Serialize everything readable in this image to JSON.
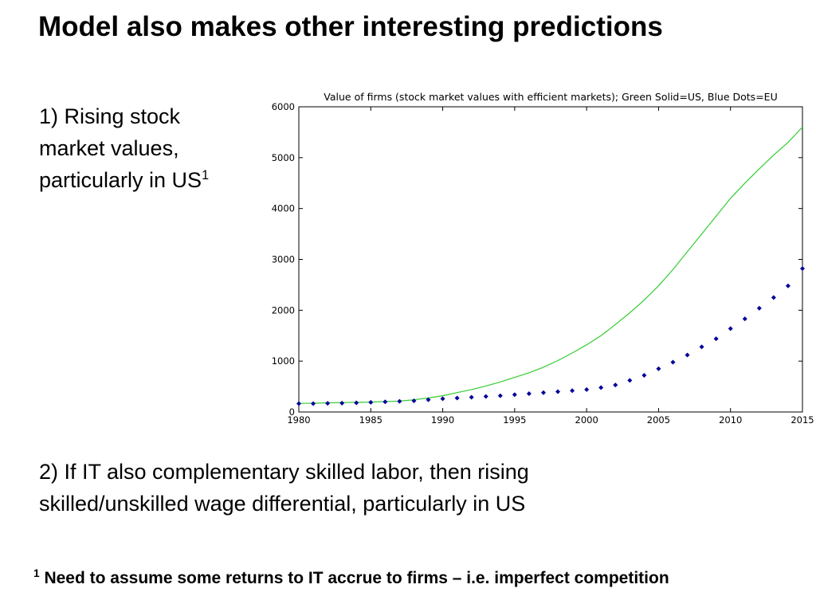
{
  "slide": {
    "title": "Model also makes other interesting predictions",
    "point1": {
      "lines": [
        "1) Rising stock",
        "market values,",
        "particularly in US"
      ],
      "sup": "1"
    },
    "point2": {
      "lines": [
        "2) If IT also complementary skilled labor, then rising",
        "skilled/unskilled wage differential, particularly in US"
      ]
    },
    "footnote": {
      "sup": "1",
      "text": "Need to assume some returns to IT accrue to firms – i.e. imperfect competition"
    }
  },
  "chart_data": {
    "type": "line",
    "title": "Value of firms (stock market values with efficient markets); Green Solid=US, Blue Dots=EU",
    "xlim": [
      1980,
      2015
    ],
    "ylim": [
      0,
      6000
    ],
    "x_ticks": [
      1980,
      1985,
      1990,
      1995,
      2000,
      2005,
      2010,
      2015
    ],
    "y_ticks": [
      0,
      1000,
      2000,
      3000,
      4000,
      5000,
      6000
    ],
    "grid": false,
    "series": [
      {
        "name": "US",
        "style": "solid",
        "color": "#33cc33",
        "x": [
          1980,
          1981,
          1982,
          1983,
          1984,
          1985,
          1986,
          1987,
          1988,
          1989,
          1990,
          1991,
          1992,
          1993,
          1994,
          1995,
          1996,
          1997,
          1998,
          1999,
          2000,
          2001,
          2002,
          2003,
          2004,
          2005,
          2006,
          2007,
          2008,
          2009,
          2010,
          2011,
          2012,
          2013,
          2014,
          2015
        ],
        "values": [
          170,
          172,
          180,
          185,
          190,
          195,
          205,
          215,
          240,
          275,
          320,
          380,
          440,
          510,
          590,
          680,
          770,
          880,
          1010,
          1160,
          1320,
          1500,
          1720,
          1950,
          2200,
          2480,
          2800,
          3150,
          3500,
          3850,
          4200,
          4500,
          4780,
          5050,
          5300,
          5600
        ]
      },
      {
        "name": "EU",
        "style": "dots",
        "color": "#000099",
        "x": [
          1980,
          1981,
          1982,
          1983,
          1984,
          1985,
          1986,
          1987,
          1988,
          1989,
          1990,
          1991,
          1992,
          1993,
          1994,
          1995,
          1996,
          1997,
          1998,
          1999,
          2000,
          2001,
          2002,
          2003,
          2004,
          2005,
          2006,
          2007,
          2008,
          2009,
          2010,
          2011,
          2012,
          2013,
          2014,
          2015
        ],
        "values": [
          165,
          165,
          170,
          175,
          180,
          190,
          200,
          210,
          220,
          240,
          260,
          275,
          290,
          305,
          320,
          340,
          360,
          380,
          400,
          420,
          440,
          480,
          530,
          620,
          720,
          850,
          980,
          1120,
          1280,
          1440,
          1640,
          1830,
          2040,
          2250,
          2480,
          2820
        ]
      }
    ]
  }
}
